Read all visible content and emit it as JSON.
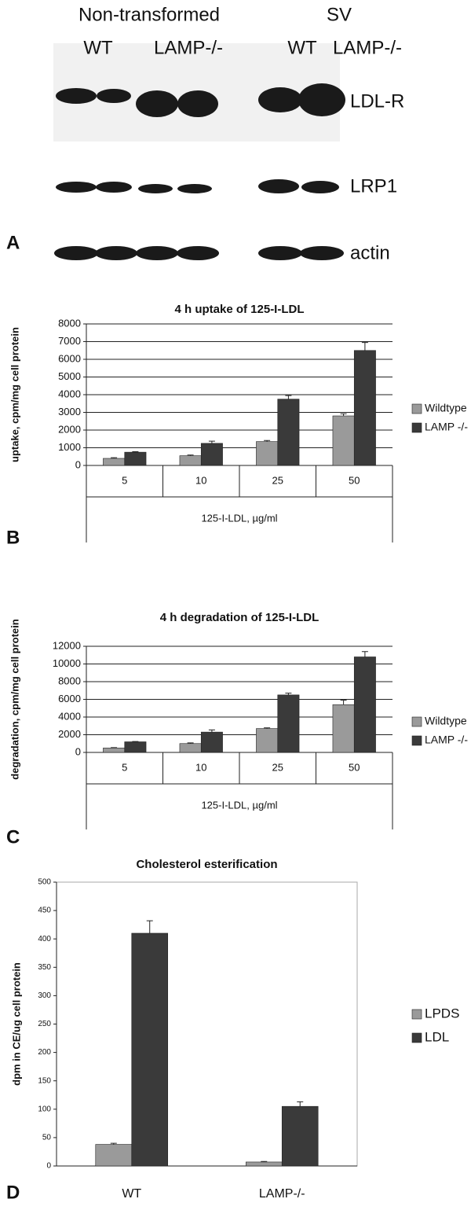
{
  "blot": {
    "header_left": "Non-transformed",
    "header_right": "SV",
    "lanes": [
      "WT",
      "LAMP-/-",
      "WT",
      "LAMP-/-"
    ],
    "rows": [
      "LDL-R",
      "LRP1",
      "actin"
    ],
    "panel": "A"
  },
  "chart_data": [
    {
      "type": "bar",
      "panel": "B",
      "title": "4 h uptake of 125-I-LDL",
      "y_label": "uptake, cpm/mg cell protein",
      "x_label": "125-I-LDL, µg/ml",
      "categories": [
        "5",
        "10",
        "25",
        "50"
      ],
      "series": [
        {
          "name": "Wildtype",
          "color": "#9a9a9a",
          "values": [
            400,
            550,
            1350,
            2800
          ],
          "errors": [
            40,
            40,
            60,
            120
          ]
        },
        {
          "name": "LAMP -/-",
          "color": "#3a3a3a",
          "values": [
            750,
            1250,
            3750,
            6500
          ],
          "errors": [
            30,
            120,
            200,
            450
          ]
        }
      ],
      "ylim": [
        0,
        8000
      ],
      "yticks": [
        0,
        1000,
        2000,
        3000,
        4000,
        5000,
        6000,
        7000,
        8000
      ],
      "grid": true,
      "legend": "right"
    },
    {
      "type": "bar",
      "panel": "C",
      "title": "4 h degradation of 125-I-LDL",
      "y_label": "degradation, cpm/mg cell protein",
      "x_label": "125-I-LDL, µg/ml",
      "categories": [
        "5",
        "10",
        "25",
        "50"
      ],
      "series": [
        {
          "name": "Wildtype",
          "color": "#9a9a9a",
          "values": [
            500,
            1000,
            2700,
            5400
          ],
          "errors": [
            50,
            80,
            80,
            500
          ]
        },
        {
          "name": "LAMP -/-",
          "color": "#3a3a3a",
          "values": [
            1200,
            2300,
            6500,
            10800
          ],
          "errors": [
            30,
            250,
            200,
            600
          ]
        }
      ],
      "ylim": [
        0,
        12000
      ],
      "yticks": [
        0,
        2000,
        4000,
        6000,
        8000,
        10000,
        12000
      ],
      "grid": true,
      "legend": "right"
    },
    {
      "type": "bar",
      "panel": "D",
      "title": "Cholesterol esterification",
      "y_label": "dpm in CE/ug cell protein",
      "categories": [
        "WT",
        "LAMP-/-"
      ],
      "series": [
        {
          "name": "LPDS",
          "color": "#9a9a9a",
          "values": [
            38,
            7
          ],
          "errors": [
            2,
            1
          ]
        },
        {
          "name": "LDL",
          "color": "#3a3a3a",
          "values": [
            410,
            105
          ],
          "errors": [
            22,
            8
          ]
        }
      ],
      "ylim": [
        0,
        500
      ],
      "yticks": [
        0,
        50,
        100,
        150,
        200,
        250,
        300,
        350,
        400,
        450,
        500
      ],
      "grid": false,
      "legend": "right"
    }
  ]
}
